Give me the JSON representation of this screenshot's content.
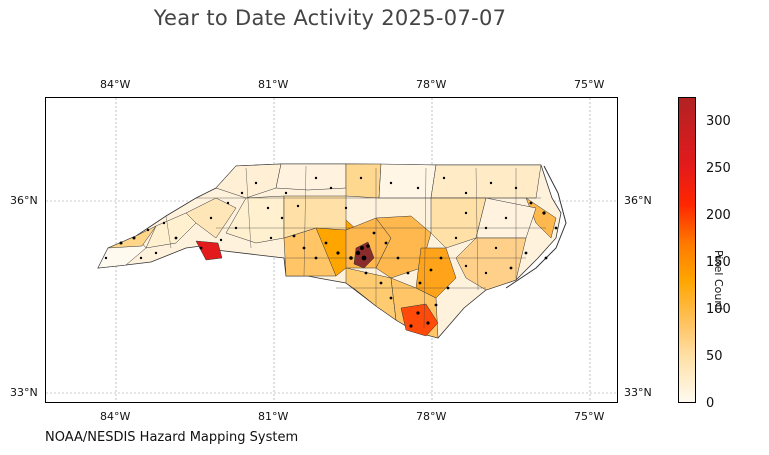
{
  "title": "Year to Date Activity 2025-07-07",
  "credit": "NOAA/NESDIS Hazard Mapping System",
  "colorbar": {
    "label": "Pixel Count",
    "ticks": [
      "0",
      "50",
      "100",
      "150",
      "200",
      "250",
      "300"
    ]
  },
  "axes": {
    "lon_ticks": [
      "84°W",
      "81°W",
      "78°W",
      "75°W"
    ],
    "lat_ticks": [
      "36°N",
      "33°N"
    ]
  },
  "colors": {
    "low": "#fffaf0",
    "mid": "#ffa500",
    "high": "#b22222",
    "points": "#000000"
  }
}
